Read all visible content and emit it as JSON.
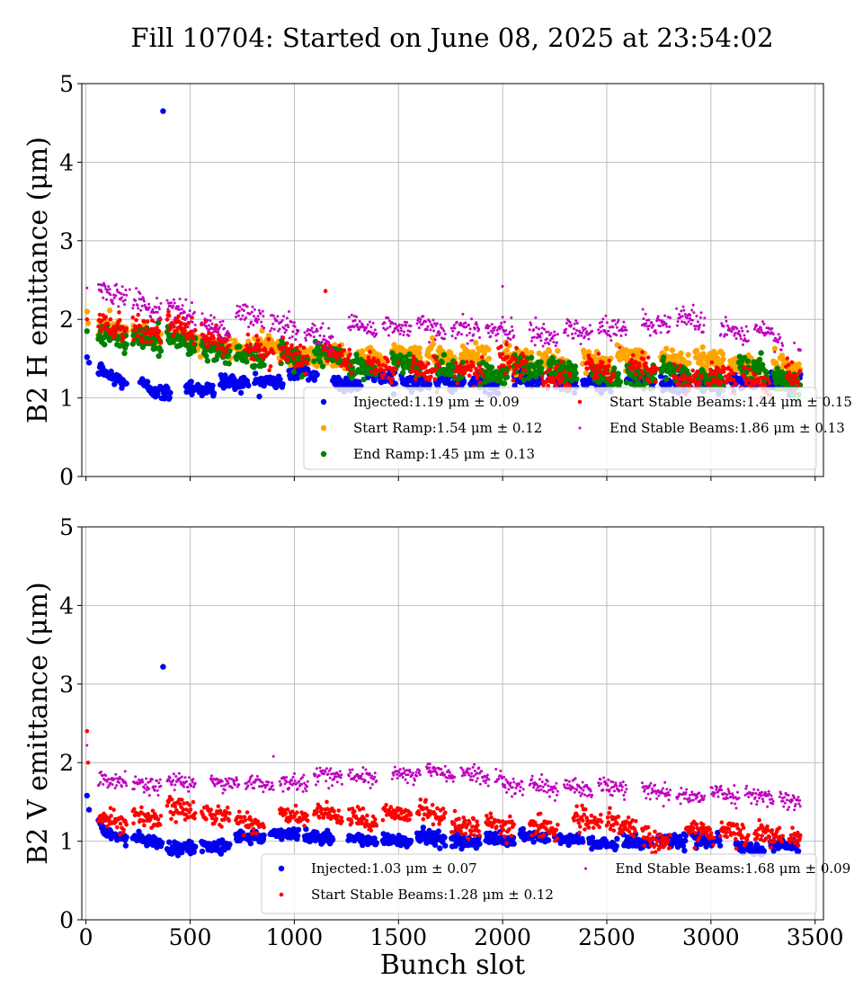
{
  "figure_title": "Fill 10704: Started on June 08, 2025 at 23:54:02",
  "colors": {
    "Injected": "#0000ee",
    "Start Ramp": "#ffa500",
    "End Ramp": "#008000",
    "Start Stable Beams": "#ff0000",
    "End Stable Beams": "#c000c0",
    "grid": "#b0b0b0"
  },
  "chart_data": [
    {
      "type": "scatter",
      "title": "",
      "xlabel": "",
      "ylabel": "B2 H emittance (μm)",
      "xlim": [
        -20,
        3540
      ],
      "ylim": [
        0,
        5
      ],
      "xticks": [
        0,
        500,
        1000,
        1500,
        2000,
        2500,
        3000,
        3500
      ],
      "xtick_labels_shown": false,
      "yticks": [
        0,
        1,
        2,
        3,
        4,
        5
      ],
      "grid": true,
      "legend_position": "lower-right",
      "legend_columns": 2,
      "x_range_of_bunches": [
        0,
        3430
      ],
      "series": [
        {
          "name": "Injected",
          "legend_text": "Injected:1.19 μm ± 0.09",
          "mean": 1.19,
          "std": 0.09,
          "marker_size": "medium",
          "points": [
            [
              5,
              1.52
            ],
            [
              15,
              1.45
            ],
            [
              100,
              1.32
            ],
            [
              150,
              1.28
            ],
            [
              260,
              1.2
            ],
            [
              365,
              1.12
            ],
            [
              370,
              4.65
            ],
            [
              500,
              1.2
            ],
            [
              700,
              1.19
            ],
            [
              1000,
              1.25
            ]
          ]
        },
        {
          "name": "Start Ramp",
          "legend_text": "Start Ramp:1.54 μm ± 0.12",
          "mean": 1.54,
          "std": 0.12,
          "marker_size": "medium",
          "points": [
            [
              5,
              2.1
            ],
            [
              10,
              1.95
            ],
            [
              600,
              1.7
            ],
            [
              1500,
              1.58
            ],
            [
              2500,
              1.48
            ]
          ]
        },
        {
          "name": "End Ramp",
          "legend_text": "End Ramp:1.45 μm ± 0.13",
          "mean": 1.45,
          "std": 0.13,
          "marker_size": "medium",
          "points": [
            [
              5,
              1.85
            ],
            [
              600,
              1.6
            ],
            [
              1500,
              1.45
            ],
            [
              2500,
              1.35
            ],
            [
              3400,
              1.3
            ]
          ]
        },
        {
          "name": "Start Stable Beams",
          "legend_text": "Start Stable Beams:1.44 μm ± 0.15",
          "mean": 1.44,
          "std": 0.15,
          "marker_size": "small",
          "points": [
            [
              5,
              2.0
            ],
            [
              1150,
              2.36
            ],
            [
              1500,
              1.45
            ],
            [
              2500,
              1.38
            ],
            [
              3400,
              1.2
            ]
          ]
        },
        {
          "name": "End Stable Beams",
          "legend_text": "End Stable Beams:1.86 μm ± 0.13",
          "mean": 1.86,
          "std": 0.13,
          "marker_size": "tiny",
          "points": [
            [
              5,
              2.4
            ],
            [
              210,
              2.38
            ],
            [
              600,
              2.05
            ],
            [
              1500,
              1.85
            ],
            [
              2000,
              2.42
            ],
            [
              2900,
              2.05
            ],
            [
              3400,
              1.7
            ]
          ]
        }
      ]
    },
    {
      "type": "scatter",
      "title": "",
      "xlabel": "Bunch slot",
      "ylabel": "B2 V emittance (μm)",
      "xlim": [
        -20,
        3540
      ],
      "ylim": [
        0,
        5
      ],
      "xticks": [
        0,
        500,
        1000,
        1500,
        2000,
        2500,
        3000,
        3500
      ],
      "xtick_labels_shown": true,
      "yticks": [
        0,
        1,
        2,
        3,
        4,
        5
      ],
      "grid": true,
      "legend_position": "lower-right",
      "legend_columns": 2,
      "x_range_of_bunches": [
        0,
        3430
      ],
      "series": [
        {
          "name": "Injected",
          "legend_text": "Injected:1.03 μm ± 0.07",
          "mean": 1.03,
          "std": 0.07,
          "marker_size": "medium",
          "points": [
            [
              5,
              1.58
            ],
            [
              15,
              1.4
            ],
            [
              100,
              1.07
            ],
            [
              365,
              0.98
            ],
            [
              370,
              3.22
            ],
            [
              1000,
              1.08
            ],
            [
              2000,
              1.03
            ],
            [
              3400,
              0.95
            ]
          ]
        },
        {
          "name": "Start Stable Beams",
          "legend_text": "Start Stable Beams:1.28 μm ± 0.12",
          "mean": 1.28,
          "std": 0.12,
          "marker_size": "small",
          "points": [
            [
              5,
              2.4
            ],
            [
              10,
              2.0
            ],
            [
              600,
              1.4
            ],
            [
              1500,
              1.32
            ],
            [
              2500,
              1.2
            ],
            [
              3400,
              1.08
            ]
          ]
        },
        {
          "name": "End Stable Beams",
          "legend_text": "End Stable Beams:1.68 μm ± 0.09",
          "mean": 1.68,
          "std": 0.09,
          "marker_size": "tiny",
          "points": [
            [
              5,
              2.22
            ],
            [
              600,
              1.8
            ],
            [
              900,
              2.08
            ],
            [
              1650,
              1.9
            ],
            [
              2500,
              1.65
            ],
            [
              3400,
              1.55
            ]
          ]
        }
      ]
    }
  ]
}
